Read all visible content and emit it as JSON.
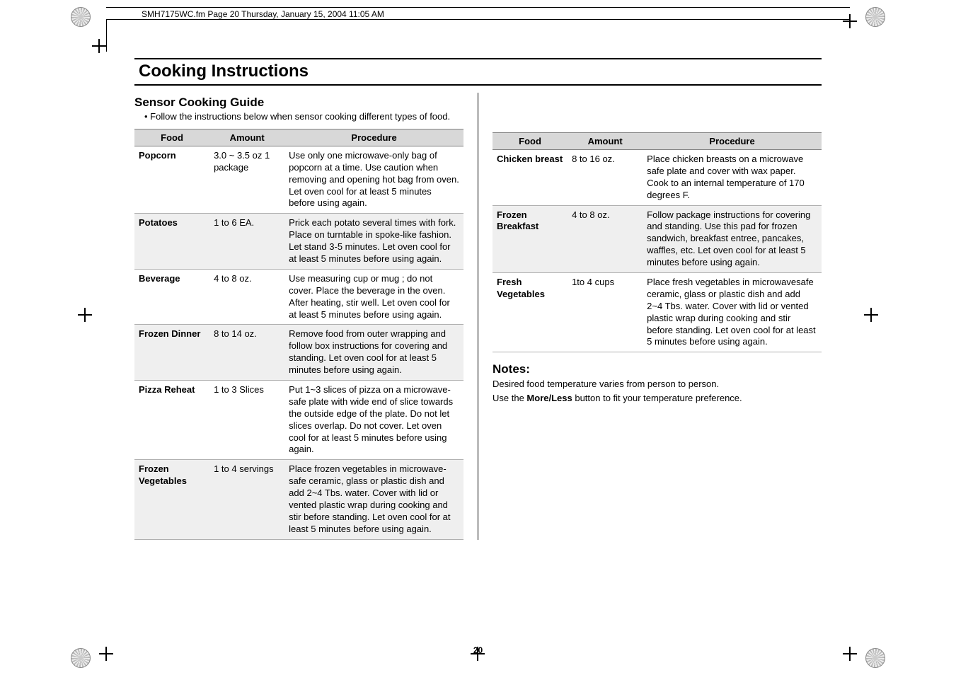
{
  "header_text": "SMH7175WC.fm  Page 20  Thursday, January 15, 2004  11:05 AM",
  "title": "Cooking Instructions",
  "section_title": "Sensor Cooking Guide",
  "intro_bullet": "Follow the instructions below when sensor cooking different types of food.",
  "page_number": "20",
  "table_headers": {
    "food": "Food",
    "amount": "Amount",
    "procedure": "Procedure"
  },
  "left_rows": [
    {
      "food": "Popcorn",
      "amount": "3.0 ~ 3.5 oz 1 package",
      "procedure": "Use only one microwave-only bag of popcorn at a time. Use caution when removing and opening hot bag from oven. Let oven cool for at least 5 minutes before using again."
    },
    {
      "food": "Potatoes",
      "amount": "1 to 6 EA.",
      "procedure": "Prick each potato several times with fork. Place on turntable in spoke-like fashion. Let stand 3-5 minutes. Let oven cool for at least 5 minutes before using again."
    },
    {
      "food": "Beverage",
      "amount": "4 to 8 oz.",
      "procedure": "Use measuring cup or mug ; do not cover.\nPlace the beverage in the oven.\nAfter heating, stir well. Let oven cool for at least 5 minutes before using again."
    },
    {
      "food": "Frozen Dinner",
      "amount": "8 to 14 oz.",
      "procedure": "Remove food from outer wrapping and follow box instructions for covering and standing. Let oven cool for at least 5 minutes before using again."
    },
    {
      "food": "Pizza Reheat",
      "amount": "1 to 3 Slices",
      "procedure": "Put 1~3 slices of pizza on a microwave-safe plate with wide end of slice towards the outside edge of the plate. Do not let slices overlap. Do not cover. Let oven cool for at least 5 minutes before using again."
    },
    {
      "food": "Frozen Vegetables",
      "amount": "1 to 4 servings",
      "procedure": "Place frozen vegetables in microwave-safe ceramic, glass or plastic dish and add 2~4 Tbs. water. Cover with lid or vented plastic wrap during cooking and stir before standing. Let oven cool for at least 5 minutes before using again."
    }
  ],
  "right_rows": [
    {
      "food": "Chicken breast",
      "amount": "8 to 16 oz.",
      "procedure": "Place chicken breasts on a microwave safe plate and cover with wax paper. Cook to an internal temperature of 170 degrees F."
    },
    {
      "food": "Frozen Breakfast",
      "amount": "4 to 8 oz.",
      "procedure": "Follow package instructions for covering and standing. Use this pad for frozen sandwich, breakfast entree, pancakes, waffles, etc. Let oven cool for at least 5 minutes before using again."
    },
    {
      "food": "Fresh Vegetables",
      "amount": "1to 4 cups",
      "procedure": "Place fresh vegetables in microwavesafe ceramic, glass or plastic dish and add 2~4 Tbs. water. Cover with lid or vented plastic wrap during cooking and stir before standing. Let oven cool for at least 5 minutes before using again."
    }
  ],
  "notes": {
    "title": "Notes:",
    "line1": "Desired food temperature varies from person to person.",
    "line2_pre": "Use the ",
    "line2_bold": "More/Less",
    "line2_post": " button to fit your temperature preference."
  }
}
